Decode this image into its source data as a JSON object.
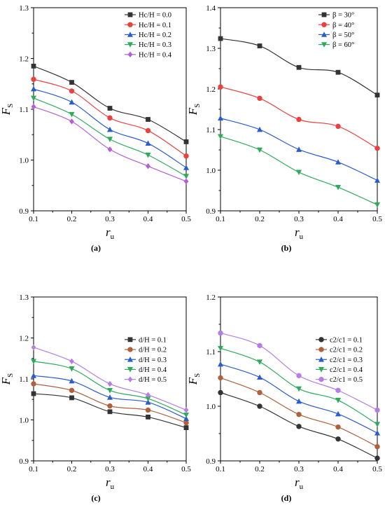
{
  "chart_data": [
    {
      "type": "line",
      "panel_label": "(a)",
      "x": [
        0.1,
        0.2,
        0.3,
        0.4,
        0.5
      ],
      "xlim": [
        0.1,
        0.5
      ],
      "ylim": [
        0.9,
        1.3
      ],
      "xticks": [
        "0.1",
        "0.2",
        "0.3",
        "0.4",
        "0.5"
      ],
      "yticks": [
        "0.9",
        "1.0",
        "1.1",
        "1.2",
        "1.3"
      ],
      "xlabel": {
        "main": "r",
        "sub": "u"
      },
      "ylabel": {
        "main": "F",
        "sub": "S"
      },
      "legend_position": "top-right",
      "series": [
        {
          "name": "Hc/H = 0.0",
          "color": "#333333",
          "marker": "square",
          "values": [
            1.185,
            1.153,
            1.102,
            1.08,
            1.036
          ]
        },
        {
          "name": "Hc/H = 0.1",
          "color": "#e8413f",
          "marker": "circle",
          "values": [
            1.159,
            1.136,
            1.083,
            1.058,
            1.008
          ]
        },
        {
          "name": "Hc/H = 0.2",
          "color": "#2a5ccf",
          "marker": "triangle-up",
          "values": [
            1.14,
            1.114,
            1.06,
            1.033,
            0.985
          ]
        },
        {
          "name": "Hc/H = 0.3",
          "color": "#2eab5a",
          "marker": "triangle-down",
          "values": [
            1.122,
            1.09,
            1.041,
            1.01,
            0.968
          ]
        },
        {
          "name": "Hc/H = 0.4",
          "color": "#b45fd6",
          "marker": "diamond",
          "values": [
            1.105,
            1.076,
            1.021,
            0.988,
            0.958
          ]
        }
      ]
    },
    {
      "type": "line",
      "panel_label": "(b)",
      "x": [
        0.1,
        0.2,
        0.3,
        0.4,
        0.5
      ],
      "xlim": [
        0.1,
        0.5
      ],
      "ylim": [
        0.9,
        1.4
      ],
      "xticks": [
        "0.1",
        "0.2",
        "0.3",
        "0.4",
        "0.5"
      ],
      "yticks": [
        "0.9",
        "1.0",
        "1.1",
        "1.2",
        "1.3",
        "1.4"
      ],
      "xlabel": {
        "main": "r",
        "sub": "u"
      },
      "ylabel": {
        "main": "F",
        "sub": "S"
      },
      "legend_position": "top-right",
      "series": [
        {
          "name": "β = 30°",
          "color": "#333333",
          "marker": "square",
          "values": [
            1.324,
            1.306,
            1.253,
            1.241,
            1.185
          ]
        },
        {
          "name": "β = 40°",
          "color": "#e8413f",
          "marker": "circle",
          "values": [
            1.205,
            1.177,
            1.125,
            1.108,
            1.054
          ]
        },
        {
          "name": "β = 50°",
          "color": "#2a5ccf",
          "marker": "triangle-up",
          "values": [
            1.128,
            1.1,
            1.051,
            1.02,
            0.975
          ]
        },
        {
          "name": "β = 60°",
          "color": "#2eab5a",
          "marker": "triangle-down",
          "values": [
            1.083,
            1.05,
            0.995,
            0.958,
            0.915
          ]
        }
      ]
    },
    {
      "type": "line",
      "panel_label": "(c)",
      "x": [
        0.1,
        0.2,
        0.3,
        0.4,
        0.5
      ],
      "xlim": [
        0.1,
        0.5
      ],
      "ylim": [
        0.9,
        1.3
      ],
      "xticks": [
        "0.1",
        "0.2",
        "0.3",
        "0.4",
        "0.5"
      ],
      "yticks": [
        "0.9",
        "1.0",
        "1.1",
        "1.2",
        "1.3"
      ],
      "xlabel": {
        "main": "r",
        "sub": "u"
      },
      "ylabel": {
        "main": "F",
        "sub": "S"
      },
      "legend_position": "center-right",
      "series": [
        {
          "name": "d/H = 0.1",
          "color": "#333333",
          "marker": "square",
          "values": [
            1.064,
            1.054,
            1.02,
            1.007,
            0.981
          ]
        },
        {
          "name": "d/H = 0.2",
          "color": "#b0603a",
          "marker": "circle",
          "values": [
            1.088,
            1.072,
            1.034,
            1.024,
            0.993
          ]
        },
        {
          "name": "d/H = 0.3",
          "color": "#2a5ccf",
          "marker": "triangle-up",
          "values": [
            1.108,
            1.095,
            1.055,
            1.043,
            1.003
          ]
        },
        {
          "name": "d/H = 0.4",
          "color": "#2eab5a",
          "marker": "triangle-down",
          "values": [
            1.143,
            1.125,
            1.072,
            1.052,
            1.012
          ]
        },
        {
          "name": "d/H = 0.5",
          "color": "#b47ee6",
          "marker": "diamond",
          "values": [
            1.177,
            1.143,
            1.088,
            1.061,
            1.024
          ]
        }
      ]
    },
    {
      "type": "line",
      "panel_label": "(d)",
      "x": [
        0.1,
        0.2,
        0.3,
        0.4,
        0.5
      ],
      "xlim": [
        0.1,
        0.5
      ],
      "ylim": [
        0.9,
        1.2
      ],
      "xticks": [
        "0.1",
        "0.2",
        "0.3",
        "0.4",
        "0.5"
      ],
      "yticks": [
        "0.9",
        "1.0",
        "1.1",
        "1.2"
      ],
      "xlabel": {
        "main": "r",
        "sub": "u"
      },
      "ylabel": {
        "main": "F",
        "sub": "S"
      },
      "legend_position": "center-right",
      "series": [
        {
          "name": "c2/c1 = 0.1",
          "color": "#333333",
          "marker": "circle",
          "values": [
            1.025,
            1.0,
            0.963,
            0.94,
            0.905
          ]
        },
        {
          "name": "c2/c1 = 0.2",
          "color": "#b0603a",
          "marker": "circle",
          "values": [
            1.052,
            1.025,
            0.985,
            0.962,
            0.926
          ]
        },
        {
          "name": "c2/c1 = 0.3",
          "color": "#2a5ccf",
          "marker": "triangle-up",
          "values": [
            1.077,
            1.053,
            1.009,
            0.986,
            0.951
          ]
        },
        {
          "name": "c2/c1 = 0.4",
          "color": "#2eab5a",
          "marker": "triangle-down",
          "values": [
            1.106,
            1.081,
            1.032,
            1.011,
            0.967
          ]
        },
        {
          "name": "c2/c1 = 0.5",
          "color": "#b47ee6",
          "marker": "circle",
          "values": [
            1.134,
            1.111,
            1.056,
            1.029,
            0.993
          ]
        }
      ]
    }
  ]
}
